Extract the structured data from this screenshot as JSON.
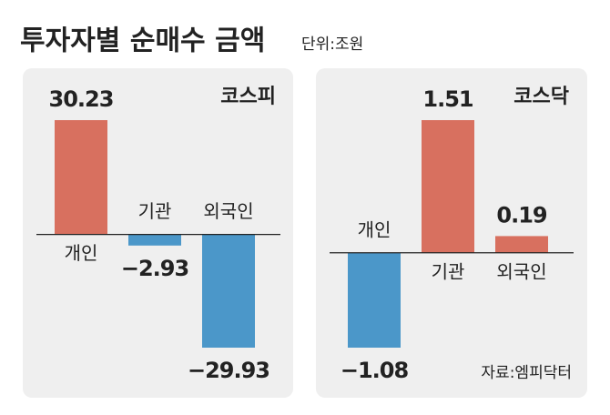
{
  "title": "투자자별 순매수 금액",
  "subtitle": "단위:조원",
  "source": "자료:엠피닥터",
  "chart_data": [
    {
      "type": "bar",
      "title": "코스피",
      "title_color": "#d8705f",
      "categories": [
        "개인",
        "기관",
        "외국인"
      ],
      "values": [
        30.23,
        -2.93,
        -29.93
      ],
      "value_labels": [
        "30.23",
        "−2.93",
        "−29.93"
      ],
      "positive_color": "#d8705f",
      "negative_color": "#4b97c9"
    },
    {
      "type": "bar",
      "title": "코스닥",
      "title_color": "#4b97c9",
      "categories": [
        "개인",
        "기관",
        "외국인"
      ],
      "values": [
        -1.08,
        1.51,
        0.19
      ],
      "value_labels": [
        "−1.08",
        "1.51",
        "0.19"
      ],
      "positive_color": "#d8705f",
      "negative_color": "#4b97c9"
    }
  ]
}
